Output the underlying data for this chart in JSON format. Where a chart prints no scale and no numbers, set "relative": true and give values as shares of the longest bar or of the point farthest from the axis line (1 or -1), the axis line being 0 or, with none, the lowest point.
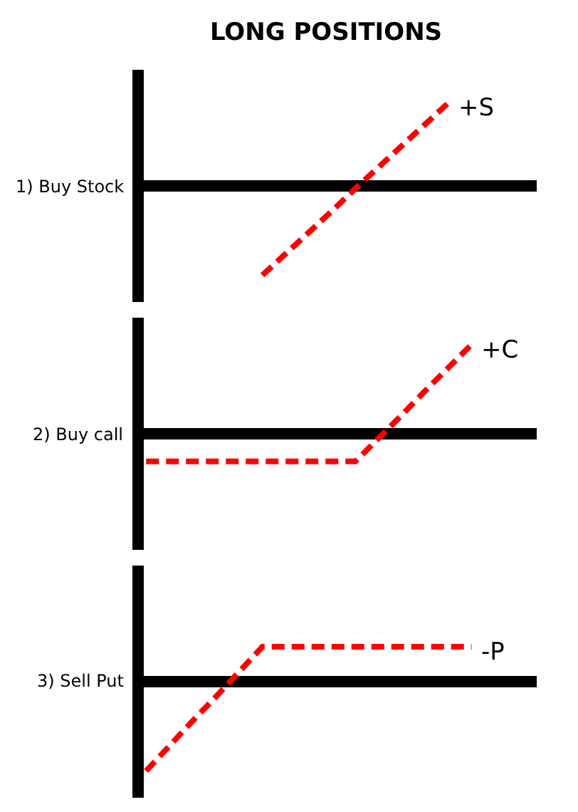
{
  "chart_data": [
    {
      "type": "line",
      "title": "LONG POSITIONS",
      "ylabel": "1) Buy Stock",
      "relative": true,
      "line_style": "dashed",
      "categories": [
        null,
        null,
        null,
        null,
        null,
        null,
        null,
        null,
        null,
        null,
        null,
        null,
        null,
        null,
        null,
        null,
        null
      ],
      "series": [
        {
          "name": "+S",
          "color": "#ff0000",
          "values": [
            null,
            null,
            null,
            null,
            null,
            -1,
            -0.76,
            -0.52,
            -0.28,
            -0.03,
            0.21,
            0.45,
            0.69,
            0.93,
            null,
            null,
            null
          ]
        }
      ]
    },
    {
      "type": "line",
      "ylabel": "2) Buy call",
      "relative": true,
      "line_style": "dashed",
      "categories": [
        null,
        null,
        null,
        null,
        null,
        null,
        null,
        null,
        null,
        null,
        null,
        null,
        null,
        null,
        null,
        null,
        null
      ],
      "series": [
        {
          "name": "+C",
          "color": "#ff0000",
          "values": [
            -0.31,
            -0.31,
            -0.31,
            -0.31,
            -0.31,
            -0.31,
            -0.31,
            -0.31,
            -0.31,
            -0.31,
            -0.05,
            0.21,
            0.48,
            0.74,
            1,
            null,
            null
          ]
        }
      ]
    },
    {
      "type": "line",
      "ylabel": "3) Sell Put",
      "relative": true,
      "line_style": "dashed",
      "categories": [
        null,
        null,
        null,
        null,
        null,
        null,
        null,
        null,
        null,
        null,
        null,
        null,
        null,
        null,
        null,
        null,
        null
      ],
      "series": [
        {
          "name": "-P",
          "color": "#ff0000",
          "values": [
            -1,
            -0.72,
            -0.44,
            -0.17,
            0.11,
            0.39,
            0.39,
            0.39,
            0.39,
            0.39,
            0.39,
            0.39,
            0.39,
            0.39,
            0.39,
            null,
            null
          ]
        }
      ]
    }
  ]
}
